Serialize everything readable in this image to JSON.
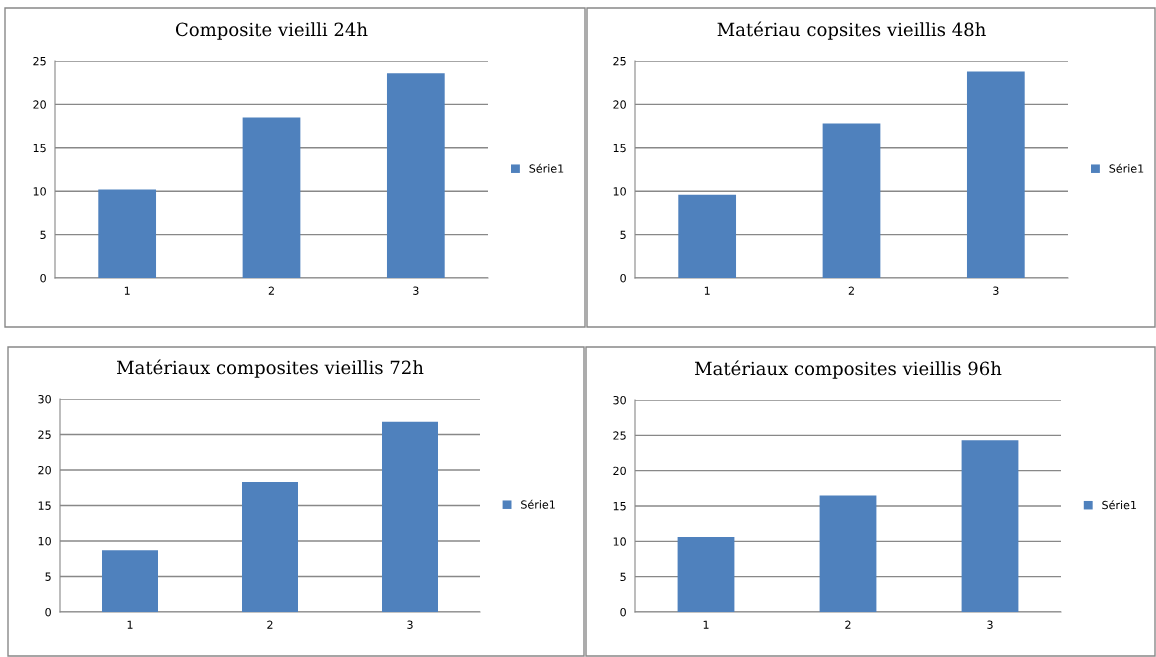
{
  "chart_data": [
    {
      "type": "bar",
      "title": "Composite vieilli 24h",
      "categories": [
        "1",
        "2",
        "3"
      ],
      "series": [
        {
          "name": "Série1",
          "color": "#4f81bd",
          "values": [
            10.2,
            18.5,
            23.6
          ]
        }
      ],
      "ylim": [
        0,
        25
      ],
      "yticks": [
        0,
        5,
        10,
        15,
        20,
        25
      ],
      "grid": "y",
      "legend": "right"
    },
    {
      "type": "bar",
      "title": "Matériau copsites vieillis 48h",
      "categories": [
        "1",
        "2",
        "3"
      ],
      "series": [
        {
          "name": "Série1",
          "color": "#4f81bd",
          "values": [
            9.6,
            17.8,
            23.8
          ]
        }
      ],
      "ylim": [
        0,
        25
      ],
      "yticks": [
        0,
        5,
        10,
        15,
        20,
        25
      ],
      "grid": "y",
      "legend": "right"
    },
    {
      "type": "bar",
      "title": "Matériaux composites vieillis 72h",
      "categories": [
        "1",
        "2",
        "3"
      ],
      "series": [
        {
          "name": "Série1",
          "color": "#4f81bd",
          "values": [
            8.7,
            18.3,
            26.8
          ]
        }
      ],
      "ylim": [
        0,
        30
      ],
      "yticks": [
        0,
        5,
        10,
        15,
        20,
        25,
        30
      ],
      "grid": "y",
      "legend": "right"
    },
    {
      "type": "bar",
      "title": "Matériaux composites vieillis 96h",
      "categories": [
        "1",
        "2",
        "3"
      ],
      "series": [
        {
          "name": "Série1",
          "color": "#4f81bd",
          "values": [
            10.6,
            16.5,
            24.3
          ]
        }
      ],
      "ylim": [
        0,
        30
      ],
      "yticks": [
        0,
        5,
        10,
        15,
        20,
        25,
        30
      ],
      "grid": "y",
      "legend": "right"
    }
  ]
}
